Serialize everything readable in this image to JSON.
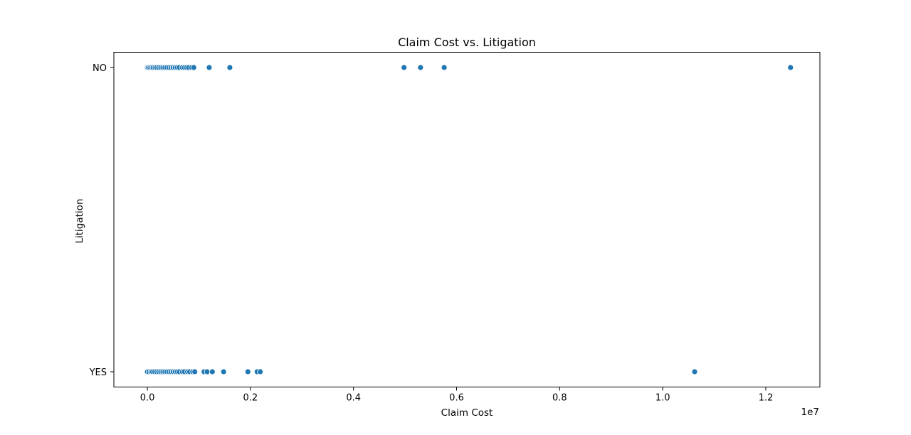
{
  "chart_data": {
    "type": "scatter",
    "title": "Claim Cost vs. Litigation",
    "xlabel": "Claim Cost",
    "ylabel": "Litigation",
    "x_offset_label": "1e7",
    "xlim": [
      -650000,
      13050000
    ],
    "x_ticks": [
      0,
      2000000,
      4000000,
      6000000,
      8000000,
      10000000,
      12000000
    ],
    "x_tick_labels": [
      "0.0",
      "0.2",
      "0.4",
      "0.6",
      "0.8",
      "1.0",
      "1.2"
    ],
    "y_categories": [
      "NO",
      "YES"
    ],
    "grid": false,
    "point_color": "#1f77b4",
    "series": [
      {
        "category": "NO",
        "x": [
          0,
          20000,
          50000,
          80000,
          110000,
          150000,
          180000,
          220000,
          260000,
          300000,
          340000,
          380000,
          420000,
          460000,
          500000,
          540000,
          580000,
          620000,
          680000,
          720000,
          760000,
          800000,
          860000,
          900000,
          1200000,
          1600000,
          4980000,
          5300000,
          5760000,
          12480000
        ]
      },
      {
        "category": "YES",
        "x": [
          0,
          30000,
          70000,
          100000,
          140000,
          180000,
          220000,
          260000,
          300000,
          340000,
          380000,
          420000,
          460000,
          500000,
          540000,
          580000,
          620000,
          680000,
          720000,
          780000,
          820000,
          880000,
          920000,
          1100000,
          1160000,
          1260000,
          1480000,
          1950000,
          2130000,
          2190000,
          10620000
        ]
      }
    ]
  }
}
